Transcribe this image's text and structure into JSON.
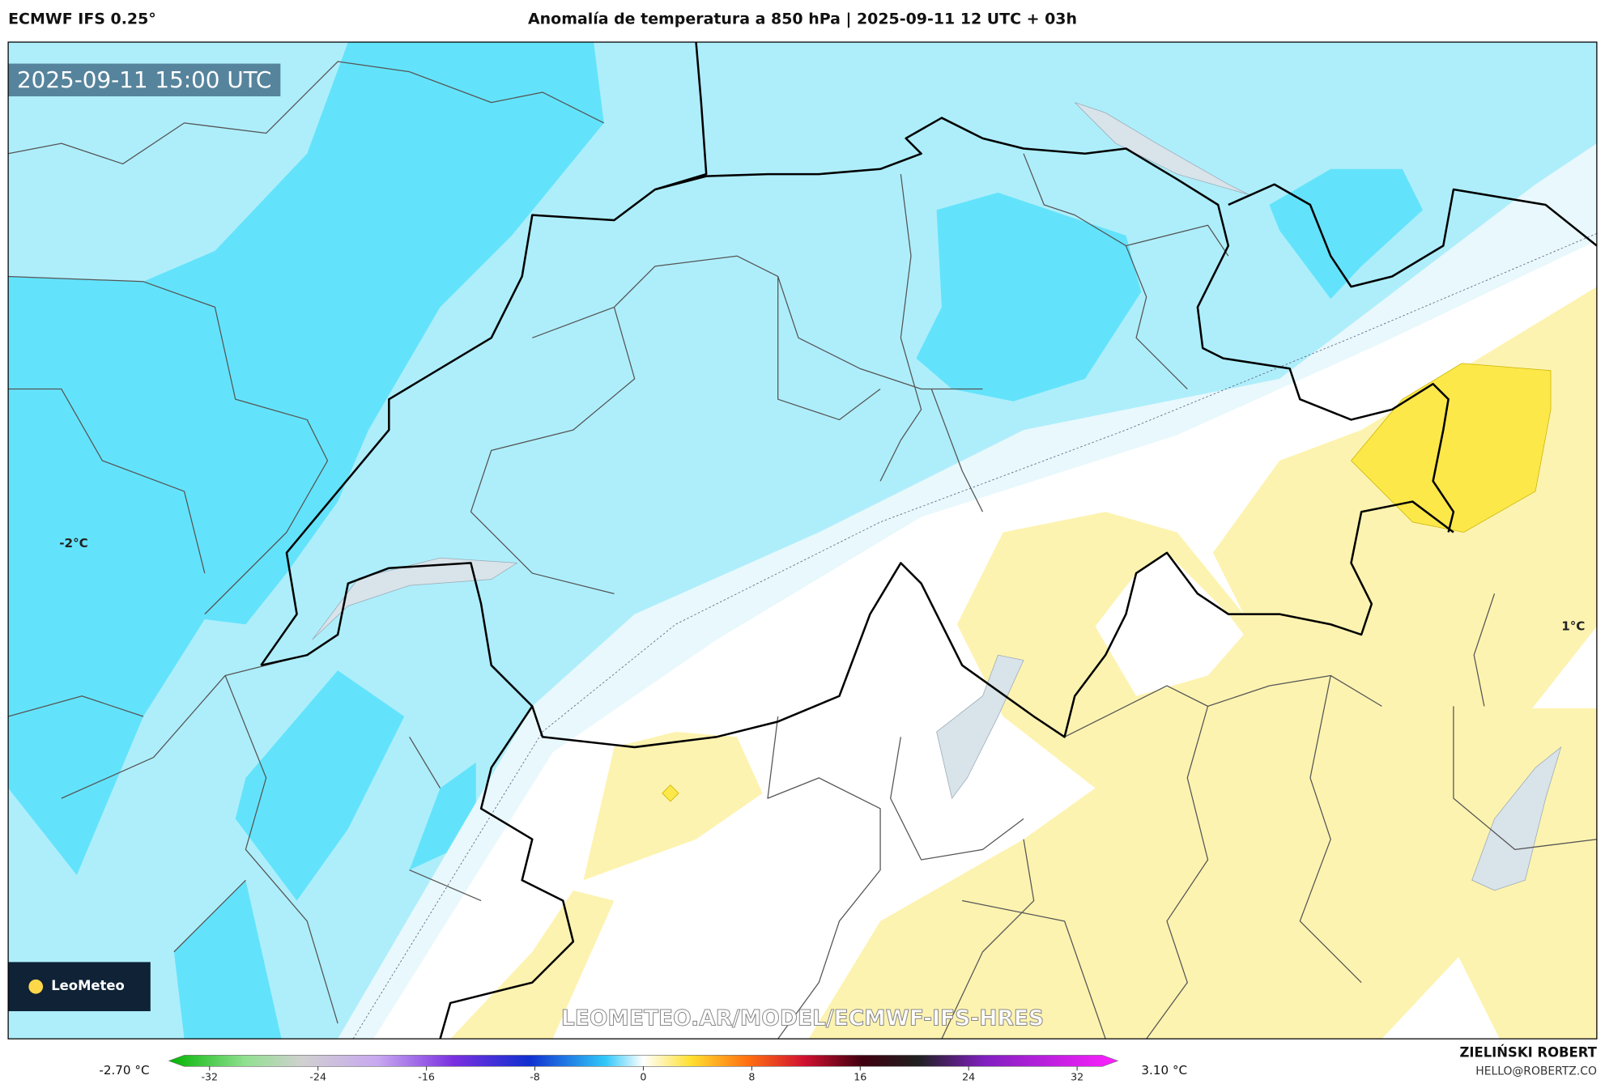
{
  "header": {
    "model": "ECMWF IFS 0.25°",
    "title": "Anomalía de temperatura a 850 hPa | 2025-09-11 12 UTC + 03h"
  },
  "map": {
    "valid_time": "2025-09-11 15:00 UTC",
    "labels": [
      "-2°C",
      "1°C"
    ],
    "watermark": "LEOMETEO.AR/MODEL/ECMWF-IFS-HRES",
    "logo": "LeoMeteo"
  },
  "colorbar": {
    "min_label": "-2.70 °C",
    "max_label": "3.10 °C",
    "lim": [
      -35,
      35
    ],
    "ticks": [
      -32,
      -24,
      -16,
      -8,
      0,
      8,
      16,
      24,
      32
    ]
  },
  "footer": {
    "author": "ZIELIŃSKI ROBERT",
    "contact": "HELLO@ROBERTZ.CO"
  }
}
